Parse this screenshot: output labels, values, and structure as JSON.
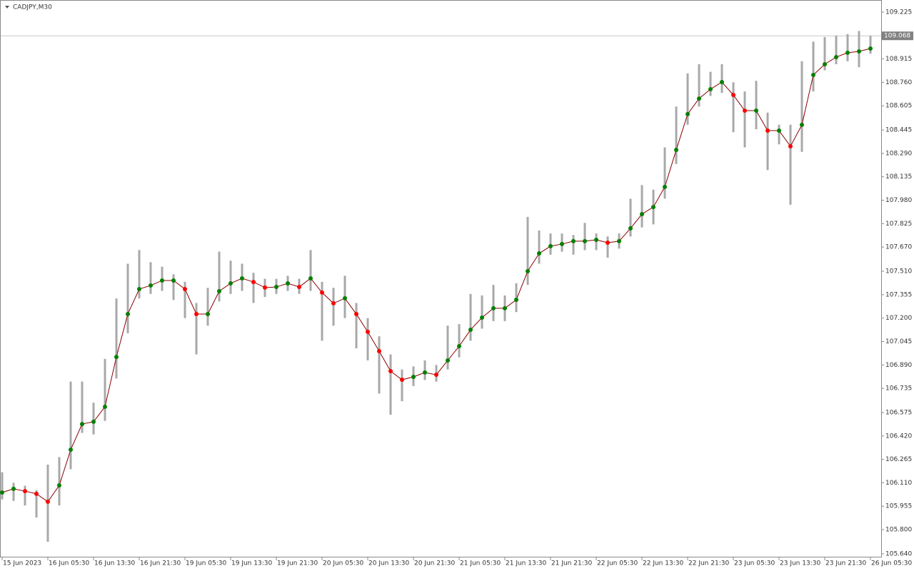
{
  "chart_data": {
    "type": "candle-indicator",
    "title": "CADJPY,M30",
    "categories": [
      "15 Jun 2023",
      null,
      null,
      null,
      "16 Jun 05:30",
      null,
      null,
      null,
      "16 Jun 13:30",
      null,
      null,
      null,
      "16 Jun 21:30",
      null,
      null,
      null,
      "19 Jun 05:30",
      null,
      null,
      null,
      "19 Jun 13:30",
      null,
      null,
      null,
      "19 Jun 21:30",
      null,
      null,
      null,
      "20 Jun 05:30",
      null,
      null,
      null,
      "20 Jun 13:30",
      null,
      null,
      null,
      "20 Jun 21:30",
      null,
      null,
      null,
      "21 Jun 05:30",
      null,
      null,
      null,
      "21 Jun 13:30",
      null,
      null,
      null,
      "21 Jun 21:30",
      null,
      null,
      null,
      "22 Jun 05:30",
      null,
      null,
      null,
      "22 Jun 13:30",
      null,
      null,
      null,
      "22 Jun 21:30",
      null,
      null,
      null,
      "23 Jun 05:30",
      null,
      null,
      null,
      "23 Jun 13:30",
      null,
      null,
      null,
      "23 Jun 21:30",
      null,
      null,
      null,
      "26 Jun 05:30"
    ],
    "values": [
      106.046,
      106.07,
      106.055,
      106.037,
      105.985,
      106.093,
      106.329,
      106.499,
      106.514,
      106.613,
      106.943,
      107.227,
      107.392,
      107.416,
      107.449,
      107.449,
      107.392,
      107.227,
      107.227,
      107.378,
      107.43,
      107.463,
      107.439,
      107.402,
      107.406,
      107.43,
      107.406,
      107.463,
      107.369,
      107.298,
      107.331,
      107.227,
      107.109,
      106.981,
      106.849,
      106.792,
      106.811,
      106.84,
      106.825,
      106.92,
      107.014,
      107.123,
      107.203,
      107.265,
      107.265,
      107.321,
      107.51,
      107.628,
      107.676,
      107.69,
      107.709,
      107.709,
      107.718,
      107.699,
      107.709,
      107.794,
      107.888,
      107.935,
      108.068,
      108.313,
      108.55,
      108.653,
      108.715,
      108.762,
      108.677,
      108.573,
      108.573,
      108.441,
      108.441,
      108.337,
      108.479,
      108.809,
      108.88,
      108.927,
      108.956,
      108.965,
      108.984
    ],
    "high": [
      106.18,
      106.11,
      106.09,
      106.06,
      106.23,
      106.28,
      106.78,
      106.78,
      106.64,
      106.93,
      107.33,
      107.56,
      107.65,
      107.57,
      107.54,
      107.49,
      107.44,
      107.3,
      107.4,
      107.64,
      107.58,
      107.56,
      107.5,
      107.46,
      107.46,
      107.48,
      107.46,
      107.65,
      107.44,
      107.4,
      107.48,
      107.3,
      107.2,
      107.08,
      106.96,
      106.86,
      106.88,
      106.92,
      106.89,
      107.15,
      107.16,
      107.36,
      107.35,
      107.42,
      107.35,
      107.43,
      107.87,
      107.78,
      107.76,
      107.76,
      107.75,
      107.83,
      107.76,
      107.74,
      107.76,
      107.99,
      108.08,
      108.05,
      108.33,
      108.6,
      108.82,
      108.88,
      108.83,
      108.88,
      108.76,
      108.7,
      108.77,
      108.56,
      108.48,
      108.48,
      108.9,
      109.03,
      109.06,
      109.07,
      109.08,
      109.1,
      109.07
    ],
    "low": [
      106.0,
      105.99,
      105.96,
      105.88,
      105.72,
      105.96,
      106.2,
      106.44,
      106.43,
      106.52,
      106.8,
      107.1,
      107.33,
      107.36,
      107.38,
      107.32,
      107.2,
      106.96,
      107.15,
      107.31,
      107.36,
      107.38,
      107.3,
      107.34,
      107.36,
      107.38,
      107.36,
      107.38,
      107.05,
      107.15,
      107.2,
      107.0,
      106.92,
      106.7,
      106.56,
      106.65,
      106.75,
      106.79,
      106.78,
      106.86,
      106.94,
      107.05,
      107.13,
      107.18,
      107.18,
      107.24,
      107.42,
      107.56,
      107.62,
      107.64,
      107.62,
      107.65,
      107.65,
      107.6,
      107.66,
      107.74,
      107.8,
      107.82,
      107.99,
      108.22,
      108.48,
      108.6,
      108.67,
      108.69,
      108.43,
      108.33,
      108.45,
      108.18,
      108.35,
      107.95,
      108.3,
      108.7,
      108.84,
      108.88,
      108.9,
      108.86,
      108.95
    ],
    "up_color": "#008000",
    "down_color": "#ff0000",
    "candle_color": "#a8a8a8",
    "current_price": 109.068,
    "ylim": [
      105.616,
      109.291
    ],
    "yticks": [
      {
        "value": 109.225,
        "label": "109.225"
      },
      {
        "value": 108.915,
        "label": "108.915"
      },
      {
        "value": 108.76,
        "label": "108.760"
      },
      {
        "value": 108.605,
        "label": "108.605"
      },
      {
        "value": 108.445,
        "label": "108.445"
      },
      {
        "value": 108.29,
        "label": "108.290"
      },
      {
        "value": 108.135,
        "label": "108.135"
      },
      {
        "value": 107.98,
        "label": "107.980"
      },
      {
        "value": 107.825,
        "label": "107.825"
      },
      {
        "value": 107.67,
        "label": "107.670"
      },
      {
        "value": 107.51,
        "label": "107.510"
      },
      {
        "value": 107.355,
        "label": "107.355"
      },
      {
        "value": 107.2,
        "label": "107.200"
      },
      {
        "value": 107.045,
        "label": "107.045"
      },
      {
        "value": 106.89,
        "label": "106.890"
      },
      {
        "value": 106.735,
        "label": "106.735"
      },
      {
        "value": 106.575,
        "label": "106.575"
      },
      {
        "value": 106.42,
        "label": "106.420"
      },
      {
        "value": 106.265,
        "label": "106.265"
      },
      {
        "value": 106.11,
        "label": "106.110"
      },
      {
        "value": 105.955,
        "label": "105.955"
      },
      {
        "value": 105.8,
        "label": "105.800"
      },
      {
        "value": 105.64,
        "label": "105.640"
      }
    ]
  }
}
